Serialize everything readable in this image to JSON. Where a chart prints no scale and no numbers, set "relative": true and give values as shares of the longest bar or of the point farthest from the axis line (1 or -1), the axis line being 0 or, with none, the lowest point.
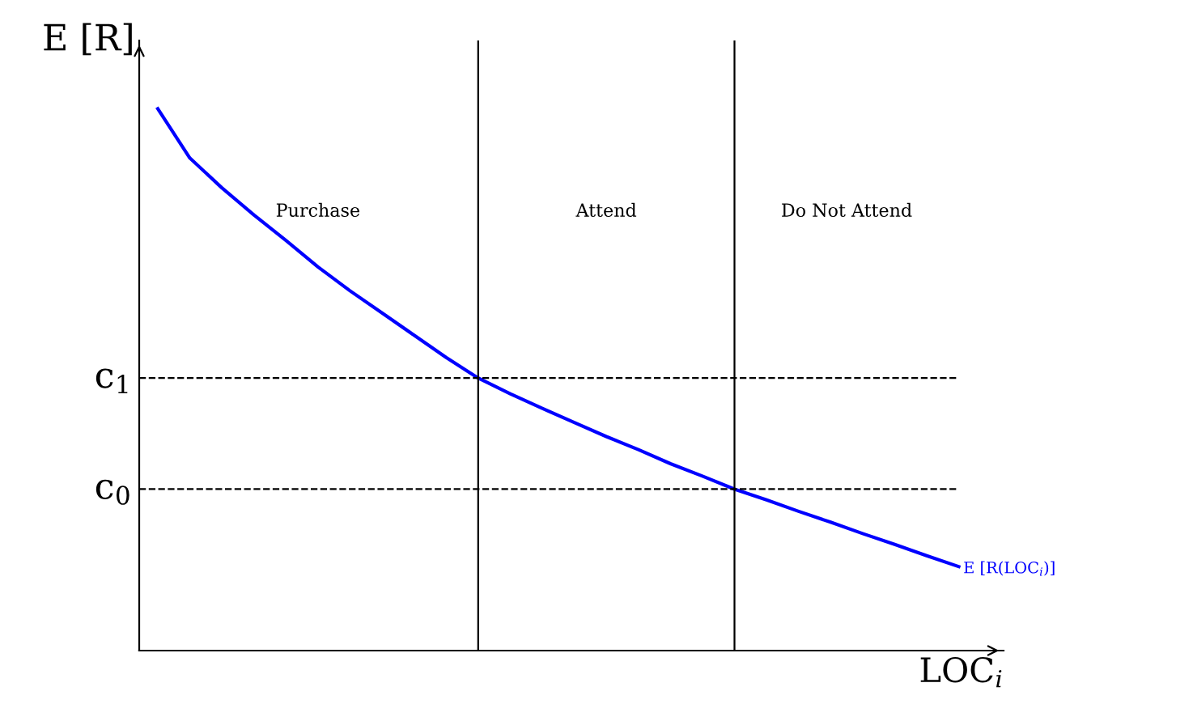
{
  "chart_data": {
    "type": "line",
    "relative": true,
    "xlabel": "LOC$_{i}$",
    "ylabel": "E [R]",
    "categories": [
      null,
      null,
      null,
      null,
      null,
      null,
      null,
      null,
      null,
      null,
      null,
      null,
      null,
      null,
      null,
      null,
      null,
      null,
      null,
      null,
      null,
      null,
      null,
      null,
      null,
      null
    ],
    "series": [
      {
        "name": "E [R(LOC$_{i}$)]",
        "color": "#0000ff",
        "values": [
          1.0,
          0.909,
          0.854,
          0.804,
          0.757,
          0.708,
          0.664,
          0.623,
          0.582,
          0.541,
          0.503,
          0.474,
          0.447,
          0.421,
          0.395,
          0.371,
          0.345,
          0.322,
          0.298,
          0.278,
          0.257,
          0.237,
          0.216,
          0.196,
          0.175,
          0.155
        ]
      }
    ],
    "ref_lines": [
      {
        "axis": "y",
        "value": 0.503,
        "label": "c$_{1}$",
        "color": "#000000",
        "line_style": "dashed"
      },
      {
        "axis": "y",
        "value": 0.298,
        "label": "c$_{0}$",
        "color": "#000000",
        "line_style": "dashed"
      }
    ],
    "annotations": [
      "Purchase",
      "Attend",
      "Do Not Attend"
    ],
    "legend": false,
    "marker": "none",
    "line_style": "solid"
  }
}
